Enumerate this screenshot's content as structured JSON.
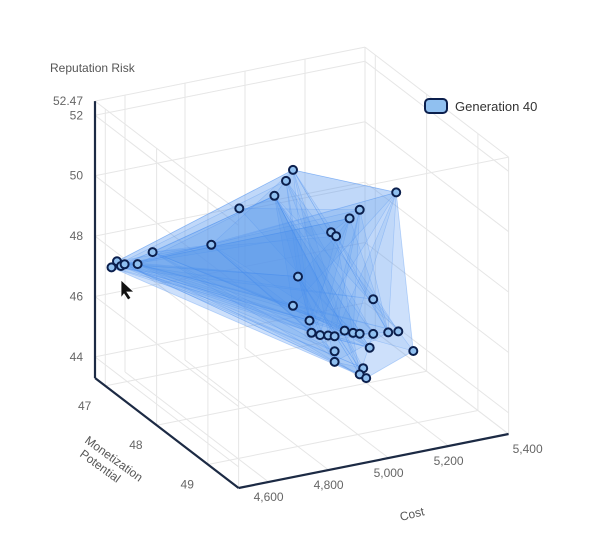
{
  "chart_data": {
    "type": "scatter3d",
    "title": "",
    "axes": {
      "x": {
        "label": "Cost",
        "range": [
          4500,
          5400
        ],
        "ticks": [
          "4,600",
          "4,800",
          "5,000",
          "5,200",
          "5,400"
        ],
        "tick_values": [
          4600,
          4800,
          5000,
          5200,
          5400
        ]
      },
      "y": {
        "label": "Monetization Potential",
        "range": [
          46.8,
          49.6
        ],
        "ticks": [
          "47",
          "48",
          "49"
        ],
        "tick_values": [
          47,
          48,
          49
        ]
      },
      "z": {
        "label": "Reputation Risk",
        "range": [
          43.3,
          52.47
        ],
        "ticks": [
          "44",
          "46",
          "48",
          "50",
          "52",
          "52.47"
        ],
        "tick_values": [
          44,
          46,
          48,
          50,
          52,
          52.47
        ]
      }
    },
    "grid": true,
    "legend": {
      "placement": "top-right",
      "entries": [
        "Generation 40"
      ]
    },
    "colors": {
      "marker_fill": "#90c0f0",
      "marker_stroke": "#0b1f4d",
      "hull_fill": "#4a90f0",
      "axis": "#1c2a44"
    },
    "series": [
      {
        "name": "Generation 40",
        "points": [
          [
            4420,
            47.59,
            48.15
          ],
          [
            4440,
            47.58,
            48.3
          ],
          [
            4450,
            47.6,
            48.15
          ],
          [
            4460,
            47.61,
            48.2
          ],
          [
            4500,
            47.63,
            48.15
          ],
          [
            4545,
            47.66,
            48.5
          ],
          [
            4720,
            47.78,
            48.55
          ],
          [
            4805,
            47.83,
            49.65
          ],
          [
            4910,
            47.9,
            49.95
          ],
          [
            4945,
            47.92,
            50.4
          ],
          [
            4965,
            47.94,
            50.75
          ],
          [
            5080,
            48.01,
            48.55
          ],
          [
            5095,
            48.02,
            48.4
          ],
          [
            5135,
            48.05,
            48.95
          ],
          [
            5165,
            48.07,
            49.2
          ],
          [
            5275,
            48.14,
            49.65
          ],
          [
            4980,
            47.95,
            47.2
          ],
          [
            4965,
            47.94,
            46.25
          ],
          [
            5015,
            47.97,
            45.7
          ],
          [
            5205,
            48.1,
            46.2
          ],
          [
            5020,
            47.98,
            45.3
          ],
          [
            5045,
            48.0,
            45.2
          ],
          [
            5070,
            48.01,
            45.15
          ],
          [
            5090,
            48.02,
            45.1
          ],
          [
            5120,
            48.04,
            45.25
          ],
          [
            5145,
            48.06,
            45.15
          ],
          [
            5165,
            48.07,
            45.1
          ],
          [
            5205,
            48.1,
            45.05
          ],
          [
            5250,
            48.13,
            45.05
          ],
          [
            5280,
            48.15,
            45.05
          ],
          [
            5090,
            48.02,
            44.6
          ],
          [
            5090,
            48.02,
            44.25
          ],
          [
            5195,
            48.09,
            44.6
          ],
          [
            5325,
            48.18,
            44.35
          ],
          [
            5175,
            48.08,
            43.95
          ],
          [
            5165,
            48.07,
            43.75
          ],
          [
            5185,
            48.08,
            43.6
          ]
        ]
      }
    ]
  }
}
